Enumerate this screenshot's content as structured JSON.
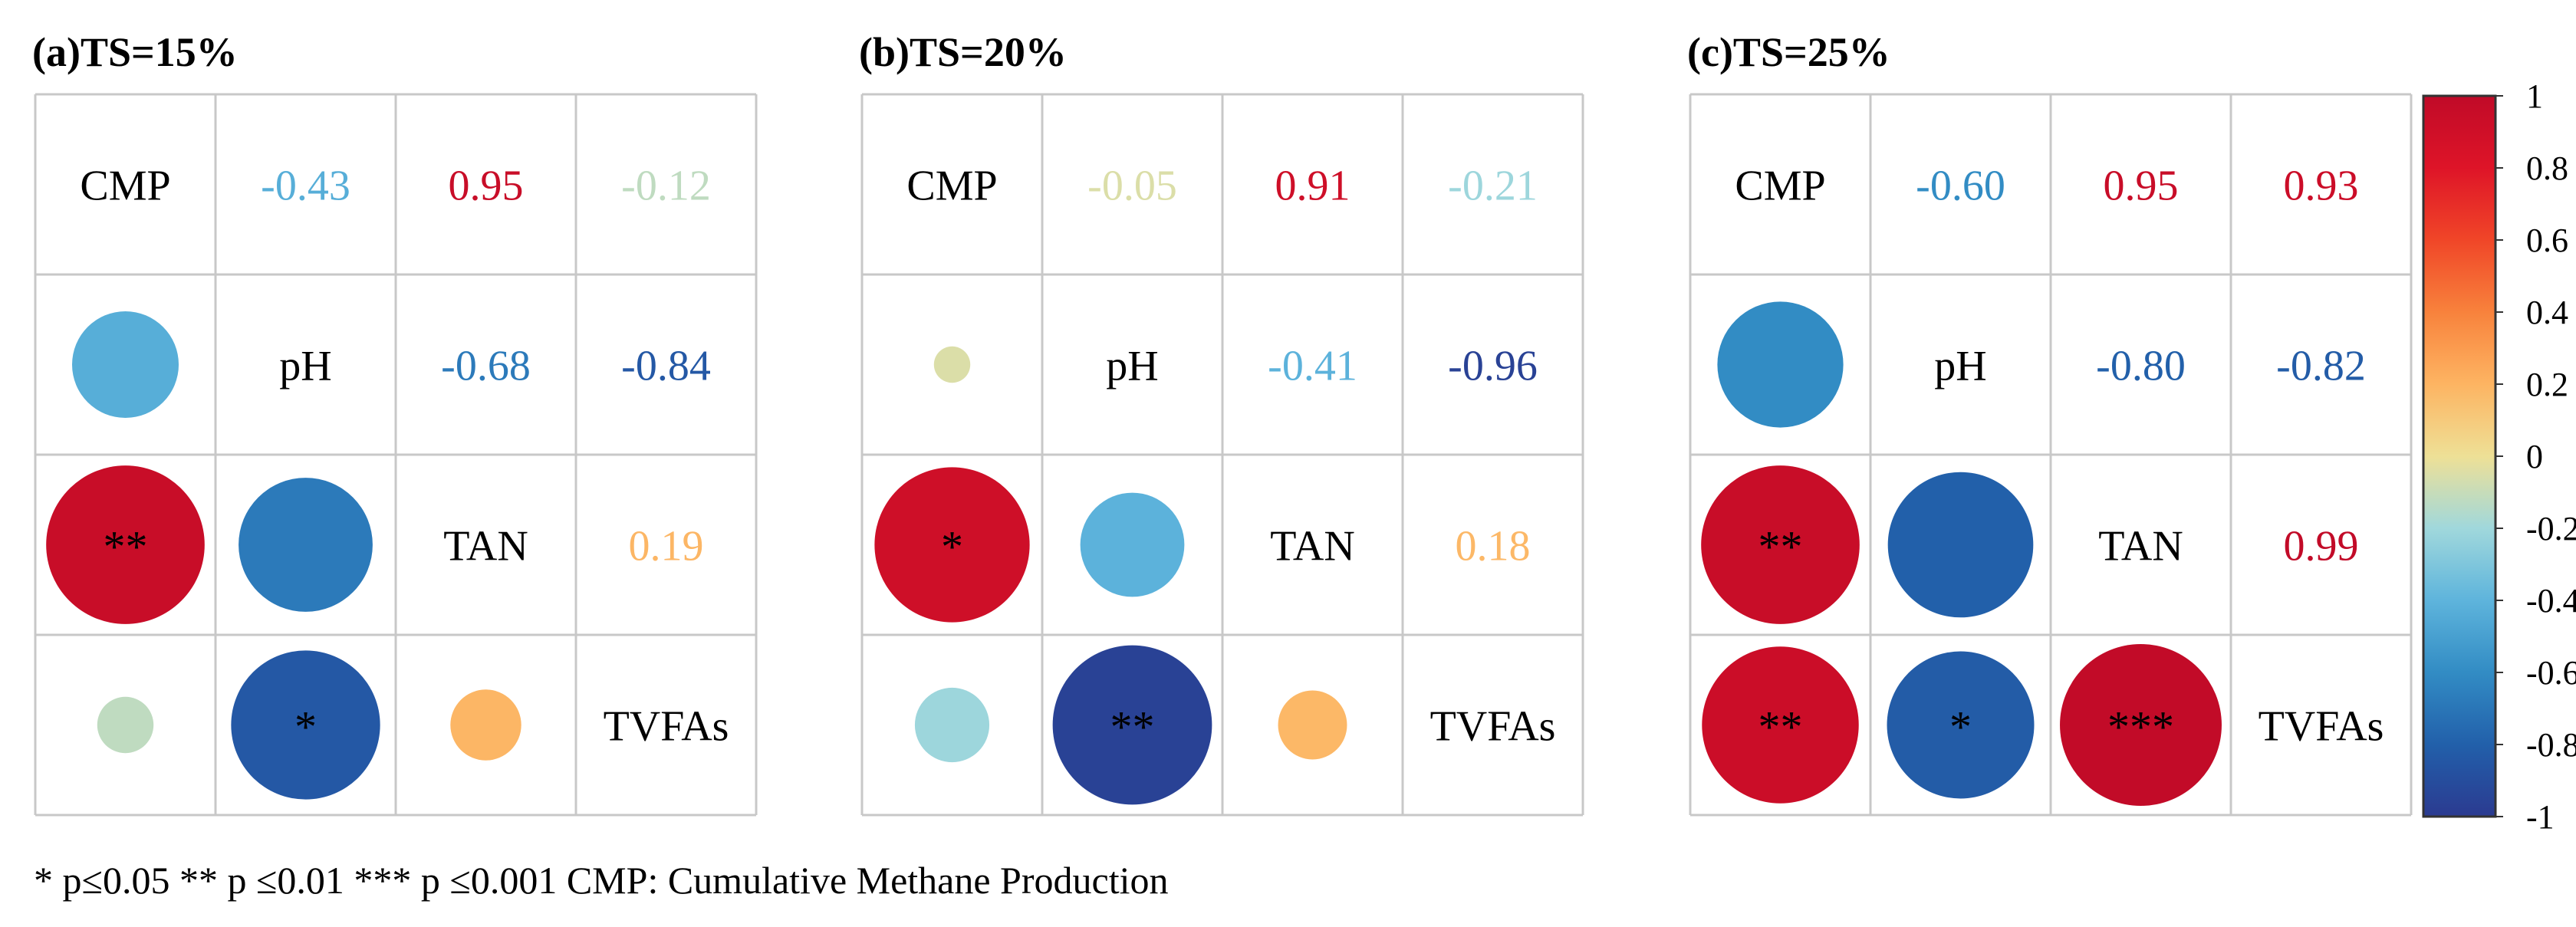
{
  "chart_data": {
    "type": "heatmap",
    "subtype": "correlation-matrix",
    "variables": [
      "CMP",
      "pH",
      "TAN",
      "TVFAs"
    ],
    "colorbar": {
      "min": -1,
      "max": 1,
      "ticks": [
        "1",
        "0.8",
        "0.6",
        "0.4",
        "0.2",
        "0",
        "-0.2",
        "-0.4",
        "-0.6",
        "-0.8",
        "-1"
      ],
      "tick_values": [
        1,
        0.8,
        0.6,
        0.4,
        0.2,
        0,
        -0.2,
        -0.4,
        -0.6,
        -0.8,
        -1
      ]
    },
    "panels": [
      {
        "title": "(a)TS=15%",
        "pairs": [
          {
            "row": 0,
            "col": 1,
            "r": -0.43,
            "label": "-0.43",
            "stars": ""
          },
          {
            "row": 0,
            "col": 2,
            "r": 0.95,
            "label": "0.95",
            "stars": "**"
          },
          {
            "row": 0,
            "col": 3,
            "r": -0.12,
            "label": "-0.12",
            "stars": ""
          },
          {
            "row": 1,
            "col": 2,
            "r": -0.68,
            "label": "-0.68",
            "stars": ""
          },
          {
            "row": 1,
            "col": 3,
            "r": -0.84,
            "label": "-0.84",
            "stars": "*"
          },
          {
            "row": 2,
            "col": 3,
            "r": 0.19,
            "label": "0.19",
            "stars": ""
          }
        ]
      },
      {
        "title": "(b)TS=20%",
        "pairs": [
          {
            "row": 0,
            "col": 1,
            "r": -0.05,
            "label": "-0.05",
            "stars": ""
          },
          {
            "row": 0,
            "col": 2,
            "r": 0.91,
            "label": "0.91",
            "stars": "*"
          },
          {
            "row": 0,
            "col": 3,
            "r": -0.21,
            "label": "-0.21",
            "stars": ""
          },
          {
            "row": 1,
            "col": 2,
            "r": -0.41,
            "label": "-0.41",
            "stars": ""
          },
          {
            "row": 1,
            "col": 3,
            "r": -0.96,
            "label": "-0.96",
            "stars": "**"
          },
          {
            "row": 2,
            "col": 3,
            "r": 0.18,
            "label": "0.18",
            "stars": ""
          }
        ]
      },
      {
        "title": "(c)TS=25%",
        "pairs": [
          {
            "row": 0,
            "col": 1,
            "r": -0.6,
            "label": "-0.60",
            "stars": ""
          },
          {
            "row": 0,
            "col": 2,
            "r": 0.95,
            "label": "0.95",
            "stars": "**"
          },
          {
            "row": 0,
            "col": 3,
            "r": 0.93,
            "label": "0.93",
            "stars": "**"
          },
          {
            "row": 1,
            "col": 2,
            "r": -0.8,
            "label": "-0.80",
            "stars": ""
          },
          {
            "row": 1,
            "col": 3,
            "r": -0.82,
            "label": "-0.82",
            "stars": "*"
          },
          {
            "row": 2,
            "col": 3,
            "r": 0.99,
            "label": "0.99",
            "stars": "***"
          }
        ]
      }
    ],
    "footnote": "* p≤0.05  ** p ≤0.01  *** p ≤0.001    CMP: Cumulative Methane Production"
  },
  "colors": {
    "grid": "#c8c8c8",
    "colorbar_border": "#333333"
  }
}
